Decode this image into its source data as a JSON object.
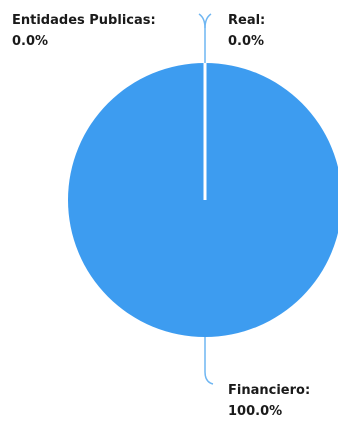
{
  "chart_data": {
    "type": "pie",
    "title": "",
    "colors": {
      "slice": "#3d9cf0",
      "divider": "#ffffff",
      "leader": "#6fb6f2",
      "text": "#1a1a1a"
    },
    "slices": [
      {
        "name": "Entidades Publicas:",
        "value": 0,
        "percent_label": "0.0%"
      },
      {
        "name": "Real:",
        "value": 0,
        "percent_label": "0.0%"
      },
      {
        "name": "Financiero:",
        "value": 100,
        "percent_label": "100.0%"
      }
    ]
  }
}
